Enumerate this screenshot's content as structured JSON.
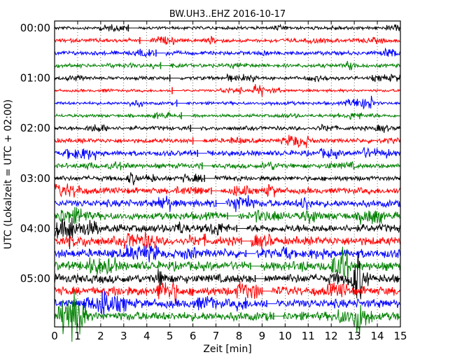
{
  "chart_data": {
    "type": "line",
    "title": "BW.UH3..EHZ 2016-10-17",
    "xlabel": "Zeit  [min]",
    "ylabel": "UTC (Lokalzeit = UTC + 02:00)",
    "xlim": [
      0,
      15
    ],
    "x_ticks": [
      0,
      1,
      2,
      3,
      4,
      5,
      6,
      7,
      8,
      9,
      10,
      11,
      12,
      13,
      14,
      15
    ],
    "y_tick_labels": [
      "00:00",
      "01:00",
      "02:00",
      "03:00",
      "04:00",
      "05:00"
    ],
    "grid": "vertical dotted",
    "trace_colors": [
      "#000000",
      "#ff0000",
      "#0000ff",
      "#008000"
    ],
    "rows_per_hour": 4,
    "row_count": 24,
    "row_interval_minutes": 15,
    "amplitude_level": [
      0.35,
      0.45,
      0.45,
      0.45,
      0.4,
      0.3,
      0.35,
      0.35,
      0.45,
      0.5,
      0.6,
      0.55,
      0.55,
      0.7,
      0.8,
      0.85,
      0.9,
      0.95,
      1.0,
      1.0,
      1.0,
      1.0,
      1.0,
      1.0
    ],
    "gap_minutes": [
      3.2,
      3.7,
      4.4,
      4.6,
      5.0,
      5.1,
      5.3,
      5.5,
      5.9,
      6.0,
      6.2,
      6.4,
      6.5,
      6.8,
      7.0,
      7.5,
      7.9,
      8.1,
      8.3,
      8.5,
      8.7,
      9.0,
      9.2,
      9.5
    ]
  }
}
